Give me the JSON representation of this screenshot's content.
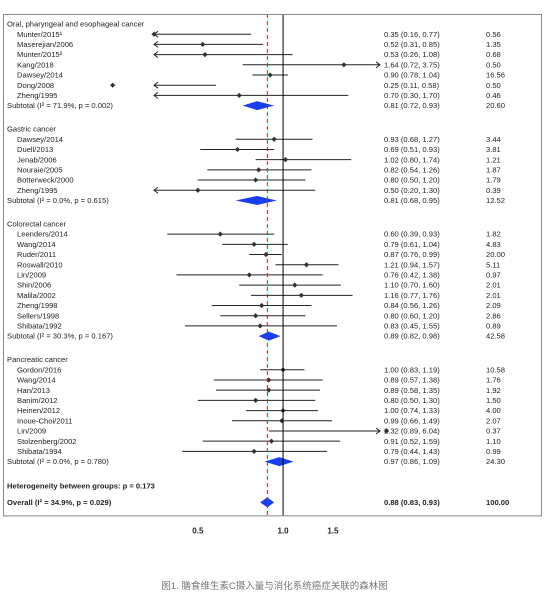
{
  "chart_data": {
    "type": "forest",
    "x_scale": "log",
    "xlim": [
      0.35,
      2.2
    ],
    "x_ticks": [
      {
        "value": 0.5,
        "label": "0.5"
      },
      {
        "value": 1.0,
        "label": "1.0"
      },
      {
        "value": 1.5,
        "label": "1.5"
      }
    ],
    "overall_line": 0.88,
    "null_line": 1.0,
    "groups": [
      {
        "name": "Oral, pharyngeal and esophageal cancer",
        "studies": [
          {
            "label": "Munter/2015¹",
            "or": 0.35,
            "lo": 0.16,
            "hi": 0.77,
            "text": "0.35 (0.16, 0.77)",
            "weight": "0.56"
          },
          {
            "label": "Maserejian/2006",
            "or": 0.52,
            "lo": 0.31,
            "hi": 0.85,
            "text": "0.52 (0.31, 0.85)",
            "weight": "1.35"
          },
          {
            "label": "Munter/2015²",
            "or": 0.53,
            "lo": 0.26,
            "hi": 1.08,
            "text": "0.53 (0.26, 1.08)",
            "weight": "0.68"
          },
          {
            "label": "Kang/2018",
            "or": 1.64,
            "lo": 0.72,
            "hi": 3.75,
            "text": "1.64 (0.72, 3.75)",
            "weight": "0.50"
          },
          {
            "label": "Dawsey/2014",
            "or": 0.9,
            "lo": 0.78,
            "hi": 1.04,
            "text": "0.90 (0.78, 1.04)",
            "weight": "16.56"
          },
          {
            "label": "Dong/2008",
            "or": 0.25,
            "lo": 0.11,
            "hi": 0.58,
            "text": "0.25 (0.11, 0.58)",
            "weight": "0.50"
          },
          {
            "label": "Zheng/1995",
            "or": 0.7,
            "lo": 0.3,
            "hi": 1.7,
            "text": "0.70 (0.30, 1.70)",
            "weight": "0.46"
          }
        ],
        "subtotal": {
          "label": "Subtotal (I² = 71.9%, p = 0.002)",
          "or": 0.81,
          "lo": 0.72,
          "hi": 0.93,
          "text": "0.81 (0.72, 0.93)",
          "weight": "20.60"
        }
      },
      {
        "name": "Gastric cancer",
        "studies": [
          {
            "label": "Dawsey/2014",
            "or": 0.93,
            "lo": 0.68,
            "hi": 1.27,
            "text": "0.93 (0.68, 1.27)",
            "weight": "3.44"
          },
          {
            "label": "Duell/2013",
            "or": 0.69,
            "lo": 0.51,
            "hi": 0.93,
            "text": "0.69 (0.51, 0.93)",
            "weight": "3.81"
          },
          {
            "label": "Jenab/2006",
            "or": 1.02,
            "lo": 0.8,
            "hi": 1.74,
            "text": "1.02 (0.80, 1.74)",
            "weight": "1.21"
          },
          {
            "label": "Nouraie/2005",
            "or": 0.82,
            "lo": 0.54,
            "hi": 1.26,
            "text": "0.82 (0.54, 1.26)",
            "weight": "1.87"
          },
          {
            "label": "Botterweck/2000",
            "or": 0.8,
            "lo": 0.5,
            "hi": 1.2,
            "text": "0.80 (0.50, 1.20)",
            "weight": "1.79"
          },
          {
            "label": "Zheng/1995",
            "or": 0.5,
            "lo": 0.2,
            "hi": 1.3,
            "text": "0.50 (0.20, 1.30)",
            "weight": "0.39"
          }
        ],
        "subtotal": {
          "label": "Subtotal (I² = 0.0%, p = 0.615)",
          "or": 0.81,
          "lo": 0.68,
          "hi": 0.95,
          "text": "0.81 (0.68, 0.95)",
          "weight": "12.52"
        }
      },
      {
        "name": "Colorectal cancer",
        "studies": [
          {
            "label": "Leenders/2014",
            "or": 0.6,
            "lo": 0.39,
            "hi": 0.93,
            "text": "0.60 (0.39, 0.93)",
            "weight": "1.82"
          },
          {
            "label": "Wang/2014",
            "or": 0.79,
            "lo": 0.61,
            "hi": 1.04,
            "text": "0.79 (0.61, 1.04)",
            "weight": "4.83"
          },
          {
            "label": "Ruder/2011",
            "or": 0.87,
            "lo": 0.76,
            "hi": 0.99,
            "text": "0.87 (0.76, 0.99)",
            "weight": "20.00"
          },
          {
            "label": "Roswall/2010",
            "or": 1.21,
            "lo": 0.94,
            "hi": 1.57,
            "text": "1.21 (0.94, 1.57)",
            "weight": "5.11"
          },
          {
            "label": "Lin/2009",
            "or": 0.76,
            "lo": 0.42,
            "hi": 1.38,
            "text": "0.76 (0.42, 1.38)",
            "weight": "0.97"
          },
          {
            "label": "Shin/2006",
            "or": 1.1,
            "lo": 0.7,
            "hi": 1.6,
            "text": "1.10 (0.70, 1.60)",
            "weight": "2.01"
          },
          {
            "label": "Malila/2002",
            "or": 1.16,
            "lo": 0.77,
            "hi": 1.76,
            "text": "1.16 (0.77, 1.76)",
            "weight": "2.01"
          },
          {
            "label": "Zheng/1998",
            "or": 0.84,
            "lo": 0.56,
            "hi": 1.26,
            "text": "0.84 (0.56, 1.26)",
            "weight": "2.09"
          },
          {
            "label": "Sellers/1998",
            "or": 0.8,
            "lo": 0.6,
            "hi": 1.2,
            "text": "0.80 (0.60, 1.20)",
            "weight": "2.86"
          },
          {
            "label": "Shibata/1992",
            "or": 0.83,
            "lo": 0.45,
            "hi": 1.55,
            "text": "0.83 (0.45, 1.55)",
            "weight": "0.89"
          }
        ],
        "subtotal": {
          "label": "Subtotal (I² = 30.3%, p = 0.167)",
          "or": 0.89,
          "lo": 0.82,
          "hi": 0.98,
          "text": "0.89 (0.82, 0.98)",
          "weight": "42.58"
        }
      },
      {
        "name": "Pancreatic cancer",
        "studies": [
          {
            "label": "Gordon/2016",
            "or": 1.0,
            "lo": 0.83,
            "hi": 1.19,
            "text": "1.00 (0.83, 1.19)",
            "weight": "10.58"
          },
          {
            "label": "Wang/2014",
            "or": 0.89,
            "lo": 0.57,
            "hi": 1.38,
            "text": "0.89 (0.57, 1.38)",
            "weight": "1.76"
          },
          {
            "label": "Han/2013",
            "or": 0.89,
            "lo": 0.58,
            "hi": 1.35,
            "text": "0.89 (0.58, 1.35)",
            "weight": "1.92"
          },
          {
            "label": "Banim/2012",
            "or": 0.8,
            "lo": 0.5,
            "hi": 1.3,
            "text": "0.80 (0.50, 1.30)",
            "weight": "1.50"
          },
          {
            "label": "Heinen/2012",
            "or": 1.0,
            "lo": 0.74,
            "hi": 1.33,
            "text": "1.00 (0.74, 1.33)",
            "weight": "4.00"
          },
          {
            "label": "Inoue-Choi/2011",
            "or": 0.99,
            "lo": 0.66,
            "hi": 1.49,
            "text": "0.99 (0.66, 1.49)",
            "weight": "2.07"
          },
          {
            "label": "Lin/2009",
            "or": 2.32,
            "lo": 0.89,
            "hi": 6.04,
            "text": "2.32 (0.89, 6.04)",
            "weight": "0.37"
          },
          {
            "label": "Stolzenberg/2002",
            "or": 0.91,
            "lo": 0.52,
            "hi": 1.59,
            "text": "0.91 (0.52, 1.59)",
            "weight": "1.10"
          },
          {
            "label": "Shibata/1994",
            "or": 0.79,
            "lo": 0.44,
            "hi": 1.43,
            "text": "0.79 (0.44, 1.43)",
            "weight": "0.99"
          }
        ],
        "subtotal": {
          "label": "Subtotal (I² = 0.0%, p = 0.780)",
          "or": 0.97,
          "lo": 0.86,
          "hi": 1.09,
          "text": "0.97 (0.86, 1.09)",
          "weight": "24.30"
        }
      }
    ],
    "heterogeneity": "Heterogeneity between groups: p = 0.173",
    "overall": {
      "label": "Overall (I² = 34.9%, p = 0.029)",
      "or": 0.88,
      "lo": 0.83,
      "hi": 0.93,
      "text": "0.88 (0.83, 0.93)",
      "weight": "100.00"
    },
    "caption": "图1. 膳食维生素C摄入量与消化系统癌症关联的森林图",
    "colors": {
      "study_marker": "#333333",
      "pooled_diamond": "#1a3fe8",
      "overall_line": "#cc2222",
      "axis": "#000000",
      "border": "#888888"
    }
  }
}
